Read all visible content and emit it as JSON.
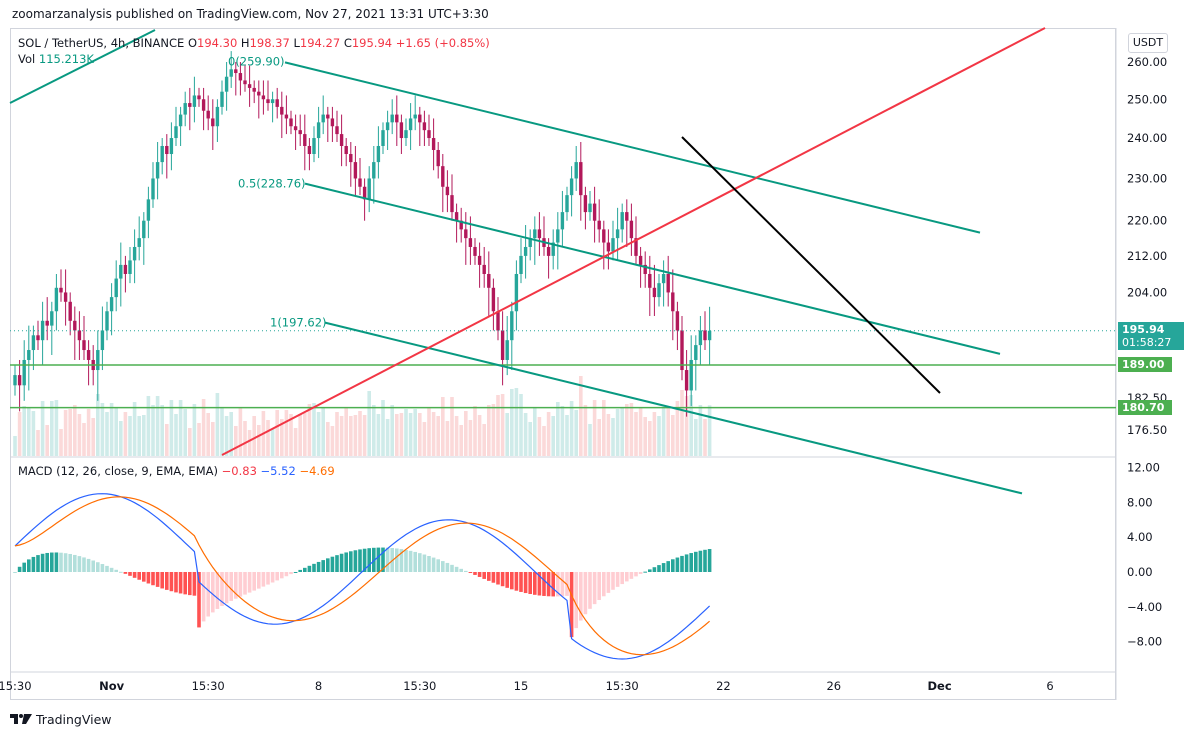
{
  "header": {
    "published_by": "zoomarzanalysis published on TradingView.com, Nov 27, 2021 13:31 UTC+3:30"
  },
  "legend": {
    "symbol": "SOL / TetherUS, 4h, BINANCE",
    "o_label": "O",
    "o_value": "194.30",
    "h_label": "H",
    "h_value": "198.37",
    "l_label": "L",
    "l_value": "194.27",
    "c_label": "C",
    "c_value": "195.94",
    "change": "+1.65 (+0.85%)",
    "vol_label": "Vol",
    "vol_value": "115.213K"
  },
  "macd_legend": {
    "label": "MACD (12, 26, close, 9, EMA, EMA)",
    "hist": "−0.83",
    "macd": "−5.52",
    "signal": "−4.69"
  },
  "currency_button": "USDT",
  "price_tags": {
    "current": "195.94",
    "countdown": "01:58:27",
    "support1": "189.00",
    "support2": "180.70"
  },
  "fib_labels": {
    "f0": "0(259.90)",
    "f05": "0.5(228.76)",
    "f1": "1(197.62)"
  },
  "footer": {
    "brand": "TradingView"
  },
  "colors": {
    "up": "#26a69a",
    "down": "#b2185a",
    "channel": "#089981",
    "trend_red": "#f23645",
    "support": "#4caf50",
    "downtrend": "#000000",
    "macd": "#2962ff",
    "signal": "#ff6d00"
  },
  "chart_data": {
    "type": "candlestick",
    "title": "SOL / TetherUS, 4h, BINANCE",
    "price_axis": {
      "ticks": [
        "260.00",
        "250.00",
        "240.00",
        "230.00",
        "220.00",
        "212.00",
        "204.00",
        "182.50",
        "176.50"
      ],
      "values": [
        260,
        250,
        240,
        230,
        220,
        212,
        204,
        182.5,
        176.5
      ],
      "scale": "log"
    },
    "macd_axis": {
      "ticks": [
        "12.00",
        "8.00",
        "4.00",
        "0.00",
        "−4.00",
        "−8.00"
      ],
      "values": [
        12,
        8,
        4,
        0,
        -4,
        -8
      ]
    },
    "time_axis": {
      "labels": [
        "15:30",
        "Nov",
        "15:30",
        "8",
        "15:30",
        "15",
        "15:30",
        "22",
        "26",
        "Dec",
        "6"
      ],
      "bar_index": [
        0,
        21,
        42,
        66,
        88,
        110,
        132,
        154,
        178,
        201,
        225
      ]
    },
    "candles_close": [
      187,
      185,
      190,
      192,
      195,
      194,
      198,
      197,
      200,
      205,
      204,
      202,
      198,
      196,
      194,
      192,
      190,
      188,
      192,
      196,
      200,
      203,
      207,
      210,
      208,
      211,
      214,
      216,
      220,
      225,
      230,
      234,
      238,
      236,
      240,
      243,
      246,
      249,
      248,
      251,
      250,
      247,
      245,
      243,
      248,
      252,
      256,
      258,
      257,
      255,
      254,
      253,
      252,
      251,
      250,
      249,
      250,
      248,
      246,
      245,
      243,
      242,
      241,
      238,
      236,
      240,
      244,
      246,
      245,
      243,
      241,
      238,
      236,
      234,
      230,
      228,
      225,
      230,
      234,
      238,
      242,
      244,
      246,
      244,
      240,
      242,
      245,
      246,
      244,
      242,
      240,
      237,
      233,
      228,
      226,
      222,
      220,
      218,
      216,
      214,
      212,
      210,
      208,
      205,
      200,
      196,
      190,
      194,
      200,
      208,
      212,
      214,
      216,
      218,
      216,
      214,
      212,
      215,
      218,
      222,
      226,
      230,
      234,
      226,
      222,
      224,
      220,
      218,
      215,
      213,
      216,
      218,
      222,
      220,
      216,
      212,
      210,
      208,
      205,
      203,
      206,
      208,
      204,
      200,
      196,
      188,
      184,
      190,
      193,
      196,
      194,
      195.94
    ],
    "support_levels": [
      189.0,
      180.7
    ],
    "fibonacci_channel": [
      {
        "level": "0",
        "price": 259.9
      },
      {
        "level": "0.5",
        "price": 228.76
      },
      {
        "level": "1",
        "price": 197.62
      }
    ],
    "macd_series": {
      "macd": -5.52,
      "signal": -4.69,
      "histogram": -0.83
    },
    "grid": false
  }
}
